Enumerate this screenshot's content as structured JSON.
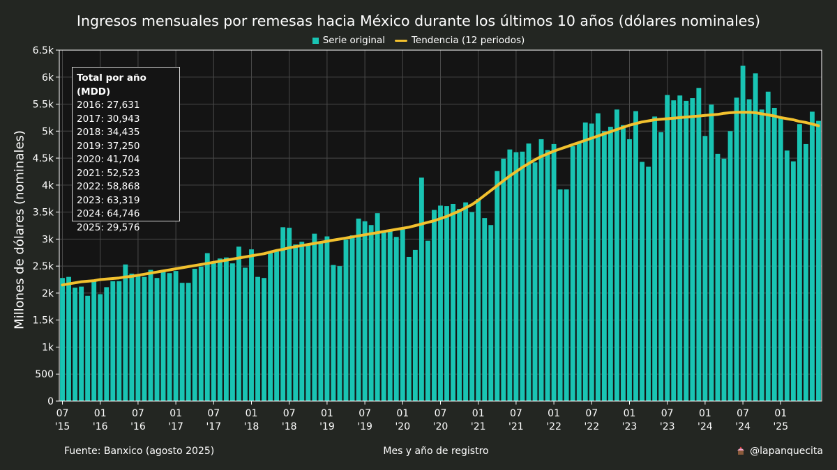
{
  "title": "Ingresos mensuales por remesas hacia México durante los últimos 10 años (dólares nominales)",
  "legend": [
    {
      "label": "Serie original",
      "type": "bar",
      "color": "#19c4b3"
    },
    {
      "label": "Tendencia (12 periodos)",
      "type": "line",
      "color": "#f2c12e"
    }
  ],
  "totals_box": {
    "title": "Total por año (MDD)",
    "lines": [
      "2016: 27,631",
      "2017: 30,943",
      "2018: 34,435",
      "2019: 37,250",
      "2020: 41,704",
      "2021: 52,523",
      "2022: 58,868",
      "2023: 63,319",
      "2024: 64,746",
      "2025: 29,576"
    ]
  },
  "source": "Fuente: Banxico (agosto 2025)",
  "handle": "@lapanquecita",
  "chart_data": {
    "type": "bar",
    "title": "Ingresos mensuales por remesas hacia México durante los últimos 10 años (dólares nominales)",
    "xlabel": "Mes y año de registro",
    "ylabel": "Millones de dólares (nominales)",
    "ylim": [
      0,
      6500
    ],
    "yticks": [
      0,
      500,
      1000,
      1500,
      2000,
      2500,
      3000,
      3500,
      4000,
      4500,
      5000,
      5500,
      6000,
      6500
    ],
    "ytick_labels": [
      "0",
      "500",
      "1k",
      "1.5k",
      "2k",
      "2.5k",
      "3k",
      "3.5k",
      "4k",
      "4.5k",
      "5k",
      "5.5k",
      "6k",
      "6.5k"
    ],
    "xticks": [
      {
        "index": 0,
        "label": [
          "07",
          "'15"
        ]
      },
      {
        "index": 6,
        "label": [
          "01",
          "'16"
        ]
      },
      {
        "index": 12,
        "label": [
          "07",
          "'16"
        ]
      },
      {
        "index": 18,
        "label": [
          "01",
          "'17"
        ]
      },
      {
        "index": 24,
        "label": [
          "07",
          "'17"
        ]
      },
      {
        "index": 30,
        "label": [
          "01",
          "'18"
        ]
      },
      {
        "index": 36,
        "label": [
          "07",
          "'18"
        ]
      },
      {
        "index": 42,
        "label": [
          "01",
          "'19"
        ]
      },
      {
        "index": 48,
        "label": [
          "07",
          "'19"
        ]
      },
      {
        "index": 54,
        "label": [
          "01",
          "'20"
        ]
      },
      {
        "index": 60,
        "label": [
          "07",
          "'20"
        ]
      },
      {
        "index": 66,
        "label": [
          "01",
          "'21"
        ]
      },
      {
        "index": 72,
        "label": [
          "07",
          "'21"
        ]
      },
      {
        "index": 78,
        "label": [
          "01",
          "'22"
        ]
      },
      {
        "index": 84,
        "label": [
          "07",
          "'22"
        ]
      },
      {
        "index": 90,
        "label": [
          "01",
          "'23"
        ]
      },
      {
        "index": 96,
        "label": [
          "07",
          "'23"
        ]
      },
      {
        "index": 102,
        "label": [
          "01",
          "'24"
        ]
      },
      {
        "index": 108,
        "label": [
          "07",
          "'24"
        ]
      },
      {
        "index": 114,
        "label": [
          "01",
          "'25"
        ]
      }
    ],
    "grid": true,
    "legend_position": "top-center",
    "start_month": "2015-07",
    "series": [
      {
        "name": "Serie original",
        "type": "bar",
        "color": "#19c4b3",
        "values": [
          2280,
          2300,
          2100,
          2120,
          1950,
          2230,
          1980,
          2110,
          2220,
          2220,
          2530,
          2360,
          2320,
          2300,
          2430,
          2280,
          2430,
          2370,
          2410,
          2190,
          2190,
          2450,
          2490,
          2740,
          2580,
          2640,
          2660,
          2550,
          2860,
          2470,
          2810,
          2300,
          2280,
          2740,
          2770,
          3220,
          3210,
          2900,
          2950,
          2890,
          3100,
          2940,
          3050,
          2520,
          2500,
          2990,
          3070,
          3380,
          3330,
          3260,
          3480,
          3160,
          3170,
          3040,
          3180,
          2670,
          2800,
          4140,
          2970,
          3540,
          3620,
          3610,
          3650,
          3560,
          3680,
          3500,
          3740,
          3390,
          3260,
          4260,
          4490,
          4660,
          4610,
          4620,
          4770,
          4420,
          4850,
          4650,
          4760,
          3920,
          3920,
          4720,
          4790,
          5160,
          5140,
          5330,
          5000,
          5080,
          5400,
          5110,
          4850,
          5370,
          4430,
          4340,
          5270,
          4980,
          5670,
          5570,
          5660,
          5560,
          5610,
          5800,
          4910,
          5490,
          4580,
          4490,
          5000,
          5620,
          6210,
          5590,
          6070,
          5400,
          5730,
          5430,
          5240,
          4640,
          4440,
          5130,
          4760,
          5360,
          5190
        ]
      },
      {
        "name": "Tendencia (12 periodos)",
        "type": "line",
        "color": "#f2c12e",
        "values": [
          2150,
          2170,
          2190,
          2210,
          2220,
          2230,
          2250,
          2260,
          2270,
          2280,
          2300,
          2310,
          2330,
          2350,
          2370,
          2390,
          2410,
          2430,
          2450,
          2470,
          2490,
          2510,
          2530,
          2550,
          2570,
          2590,
          2610,
          2630,
          2650,
          2670,
          2690,
          2710,
          2730,
          2760,
          2790,
          2810,
          2840,
          2860,
          2880,
          2900,
          2920,
          2940,
          2960,
          2980,
          3000,
          3020,
          3040,
          3060,
          3080,
          3100,
          3120,
          3140,
          3160,
          3180,
          3200,
          3220,
          3250,
          3280,
          3310,
          3340,
          3380,
          3420,
          3470,
          3520,
          3580,
          3640,
          3720,
          3810,
          3900,
          3990,
          4080,
          4170,
          4250,
          4330,
          4400,
          4470,
          4530,
          4580,
          4630,
          4670,
          4710,
          4750,
          4790,
          4830,
          4870,
          4910,
          4950,
          4990,
          5030,
          5070,
          5110,
          5140,
          5170,
          5190,
          5210,
          5220,
          5230,
          5240,
          5250,
          5260,
          5270,
          5280,
          5290,
          5300,
          5310,
          5330,
          5340,
          5350,
          5350,
          5350,
          5340,
          5320,
          5300,
          5280,
          5250,
          5230,
          5210,
          5180,
          5160,
          5130,
          5100
        ]
      }
    ]
  }
}
